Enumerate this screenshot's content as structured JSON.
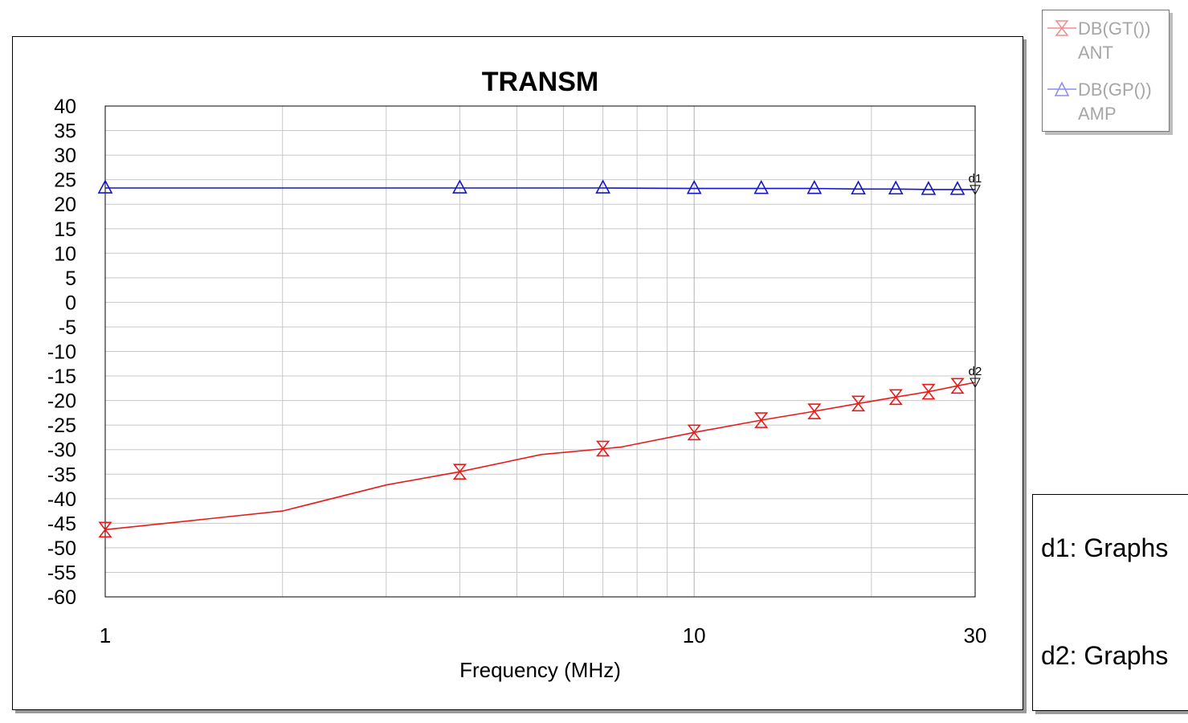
{
  "chart_data": {
    "type": "line",
    "title": "TRANSM",
    "xlabel": "Frequency (MHz)",
    "ylabel": "",
    "x_scale": "log",
    "xlim": [
      1,
      30
    ],
    "ylim": [
      -60,
      40
    ],
    "x_ticks": [
      1,
      10,
      30
    ],
    "y_ticks": [
      40,
      35,
      30,
      25,
      20,
      15,
      10,
      5,
      0,
      -5,
      -10,
      -15,
      -20,
      -25,
      -30,
      -35,
      -40,
      -45,
      -50,
      -55,
      -60
    ],
    "grid": true,
    "legend_position": "top-right",
    "series": [
      {
        "name": "DB(GT()) ANT",
        "legend_line1": "DB(GT())",
        "legend_line2": "ANT",
        "color": "#e81b1b",
        "marker": "hourglass",
        "x": [
          1,
          2,
          3,
          4,
          5.5,
          7.5,
          10,
          13,
          16,
          19,
          22,
          25,
          28,
          30
        ],
        "y": [
          -46.3,
          -42.5,
          -37.2,
          -34.5,
          -31.0,
          -29.5,
          -26.5,
          -24.0,
          -22.2,
          -20.6,
          -19.3,
          -18.2,
          -17.0,
          -16.3
        ],
        "marker_x": [
          1,
          4,
          7,
          10,
          13,
          16,
          19,
          22,
          25,
          28
        ],
        "marker_y": [
          -46.3,
          -34.5,
          -29.8,
          -26.5,
          -24.0,
          -22.2,
          -20.6,
          -19.3,
          -18.2,
          -17.0
        ]
      },
      {
        "name": "DB(GP()) AMP",
        "legend_line1": "DB(GP())",
        "legend_line2": "AMP",
        "color": "#1414c8",
        "marker": "triangle",
        "x": [
          1,
          4,
          7,
          10,
          13,
          16,
          19,
          22,
          25,
          28,
          30
        ],
        "y": [
          23.3,
          23.3,
          23.3,
          23.2,
          23.2,
          23.2,
          23.1,
          23.1,
          23.0,
          23.0,
          23.0
        ],
        "marker_x": [
          1,
          4,
          7,
          10,
          13,
          16,
          19,
          22,
          25,
          28
        ],
        "marker_y": [
          23.3,
          23.3,
          23.3,
          23.2,
          23.2,
          23.2,
          23.1,
          23.1,
          23.0,
          23.0
        ]
      }
    ],
    "markers": [
      {
        "label": "d1",
        "x": 30,
        "y": 23.0
      },
      {
        "label": "d2",
        "x": 30,
        "y": -16.3
      }
    ]
  },
  "marker_readout": {
    "lines": [
      "d1: Graphs",
      "d2: Graphs"
    ]
  }
}
